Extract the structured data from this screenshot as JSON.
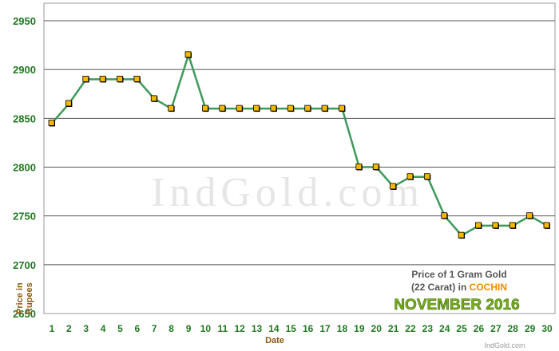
{
  "chart_data": {
    "type": "line",
    "watermark": "IndGold.com",
    "xlabel": "Date",
    "ylabel": [
      "Price in",
      "Rupees"
    ],
    "ylim": [
      2650,
      2950
    ],
    "yticks": [
      2650,
      2700,
      2750,
      2800,
      2850,
      2900,
      2950
    ],
    "grid": true,
    "x": [
      1,
      2,
      3,
      4,
      5,
      6,
      7,
      8,
      9,
      10,
      11,
      12,
      13,
      14,
      15,
      16,
      17,
      18,
      19,
      20,
      21,
      22,
      23,
      24,
      25,
      26,
      27,
      28,
      29,
      30
    ],
    "series": [
      {
        "values": [
          2845,
          2865,
          2890,
          2890,
          2890,
          2890,
          2870,
          2860,
          2915,
          2860,
          2860,
          2860,
          2860,
          2860,
          2860,
          2860,
          2860,
          2860,
          2800,
          2800,
          2780,
          2790,
          2790,
          2750,
          2730,
          2740,
          2740,
          2740,
          2750,
          2740
        ]
      }
    ],
    "colors": {
      "line": "#3d9a5c",
      "marker_fill": "#f5b800",
      "marker_stroke": "#000000",
      "tick_text": "#1f7a1f",
      "axis_title": "#8a5a12"
    },
    "legend": {
      "line1": "Price of 1 Gram Gold",
      "line2_prefix": "(22 Carat) in ",
      "city": "COCHIN",
      "month": "NOVEMBER  2016",
      "position": "bottom-right"
    },
    "footer": "IndGold.com"
  }
}
